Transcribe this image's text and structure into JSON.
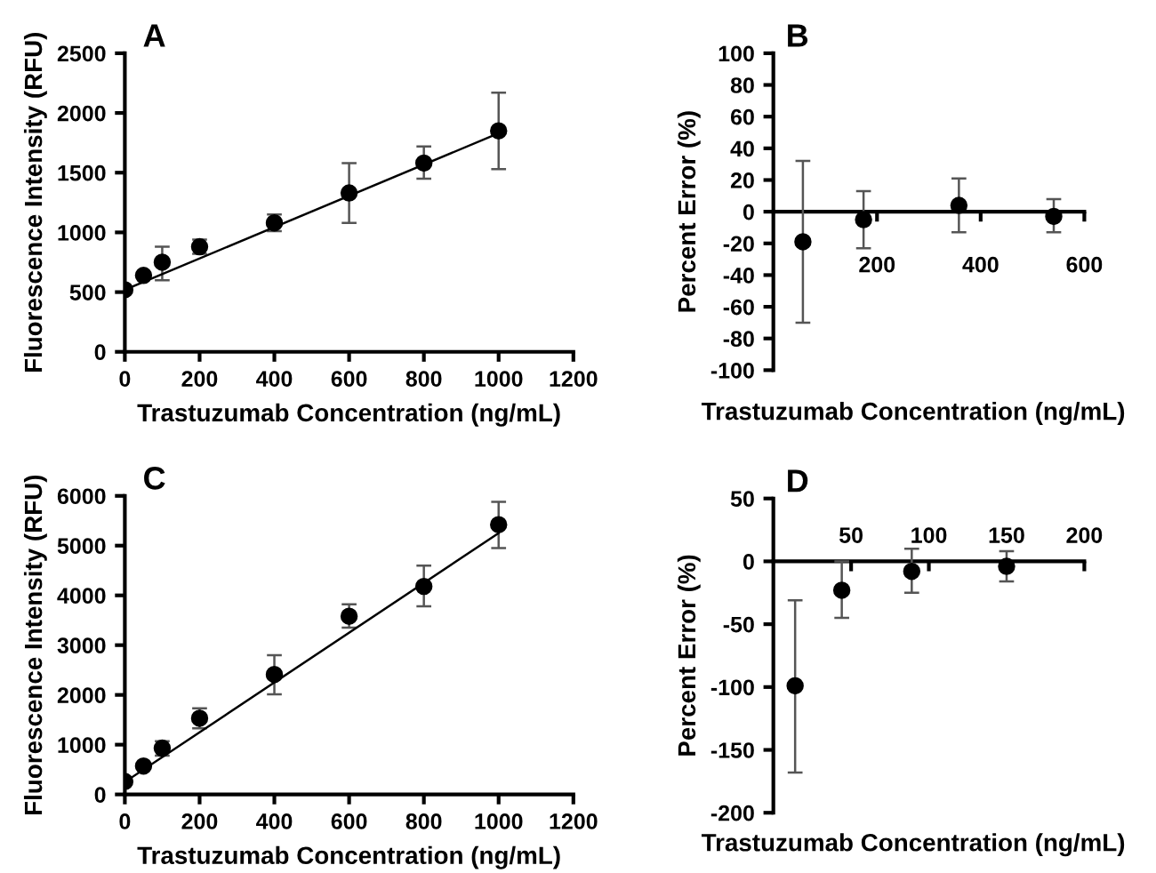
{
  "chart_data": [
    {
      "type": "scatter",
      "title": "A",
      "xlabel": "Trastuzumab Concentration (ng/mL)",
      "ylabel": "Fluorescence Intensity (RFU)",
      "xlim": [
        0,
        1200
      ],
      "xticks": [
        0,
        200,
        400,
        600,
        800,
        1000,
        1200
      ],
      "ylim": [
        0,
        2500
      ],
      "yticks": [
        0,
        500,
        1000,
        1500,
        2000,
        2500
      ],
      "grid": false,
      "series": [
        {
          "marker": "circle",
          "color": "#000000",
          "x": [
            0,
            50,
            100,
            200,
            400,
            600,
            800,
            1000
          ],
          "values": [
            520,
            640,
            750,
            880,
            1080,
            1330,
            1580,
            1850
          ],
          "errors": [
            null,
            null,
            [
              600,
              880
            ],
            [
              820,
              940
            ],
            [
              1010,
              1150
            ],
            [
              1080,
              1580
            ],
            [
              1450,
              1720
            ],
            [
              1530,
              2170
            ]
          ]
        },
        {
          "type": "line",
          "marker": "none",
          "color": "#000000",
          "x": [
            0,
            1000
          ],
          "values": [
            520,
            1830
          ]
        }
      ]
    },
    {
      "type": "scatter",
      "title": "B",
      "xlabel": "Trastuzumab Concentration (ng/mL)",
      "ylabel": "Percent Error (%)",
      "xlim": [
        0,
        600
      ],
      "xticks": [
        200,
        400,
        600
      ],
      "ylim": [
        -100,
        100
      ],
      "yticks": [
        -100,
        -80,
        -60,
        -40,
        -20,
        0,
        20,
        40,
        60,
        80,
        100
      ],
      "grid": false,
      "series": [
        {
          "marker": "circle",
          "color": "#000000",
          "x": [
            57,
            174,
            358,
            541
          ],
          "values": [
            -19,
            -5,
            4,
            -3
          ],
          "errors": [
            [
              -70,
              32
            ],
            [
              -23,
              13
            ],
            [
              -13,
              21
            ],
            [
              -13,
              8
            ]
          ]
        }
      ]
    },
    {
      "type": "scatter",
      "title": "C",
      "xlabel": "Trastuzumab Concentration (ng/mL)",
      "ylabel": "Fluorescence Intensity (RFU)",
      "xlim": [
        0,
        1200
      ],
      "xticks": [
        0,
        200,
        400,
        600,
        800,
        1000,
        1200
      ],
      "ylim": [
        0,
        6000
      ],
      "yticks": [
        0,
        1000,
        2000,
        3000,
        4000,
        5000,
        6000
      ],
      "grid": false,
      "series": [
        {
          "marker": "circle",
          "color": "#000000",
          "x": [
            0,
            50,
            100,
            200,
            400,
            600,
            800,
            1000
          ],
          "values": [
            260,
            570,
            930,
            1530,
            2410,
            3580,
            4180,
            5420
          ],
          "errors": [
            null,
            null,
            [
              780,
              1070
            ],
            [
              1330,
              1730
            ],
            [
              2010,
              2800
            ],
            [
              3350,
              3820
            ],
            [
              3780,
              4600
            ],
            [
              4950,
              5880
            ]
          ]
        },
        {
          "type": "line",
          "marker": "none",
          "color": "#000000",
          "x": [
            0,
            1000
          ],
          "values": [
            250,
            5250
          ]
        }
      ]
    },
    {
      "type": "scatter",
      "title": "D",
      "xlabel": "Trastuzumab Concentration (ng/mL)",
      "ylabel": "Percent Error (%)",
      "xlim": [
        0,
        200
      ],
      "xticks": [
        50,
        100,
        150,
        200
      ],
      "ylim": [
        -200,
        50
      ],
      "yticks": [
        -200,
        -150,
        -100,
        -50,
        0,
        50
      ],
      "grid": false,
      "series": [
        {
          "marker": "circle",
          "color": "#000000",
          "x": [
            14,
            44,
            89,
            150
          ],
          "values": [
            -99,
            -23,
            -8,
            -4
          ],
          "errors": [
            [
              -168,
              -31
            ],
            [
              -45,
              0
            ],
            [
              -25,
              10
            ],
            [
              -16,
              8
            ]
          ]
        }
      ]
    }
  ]
}
